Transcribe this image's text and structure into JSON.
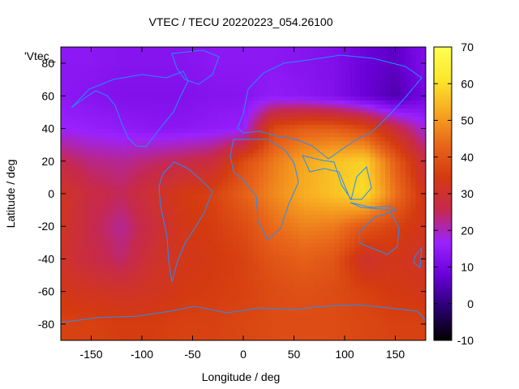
{
  "chart_data": {
    "type": "heatmap",
    "title": "VTEC / TECU 20220223_054.26100",
    "xlabel": "Longitude / deg",
    "ylabel": "Latitude / deg",
    "legend_entry": "'Vtec_",
    "xlim": [
      -180,
      180
    ],
    "ylim": [
      -90,
      90
    ],
    "x_ticks": [
      -150,
      -100,
      -50,
      0,
      50,
      100,
      150
    ],
    "y_ticks": [
      -80,
      -60,
      -40,
      -20,
      0,
      20,
      40,
      60,
      80
    ],
    "colorbar": {
      "range": [
        -10,
        70
      ],
      "ticks": [
        -10,
        0,
        10,
        20,
        30,
        40,
        50,
        60,
        70
      ],
      "palette": [
        "#000000",
        "#2a0070",
        "#6a00d8",
        "#9a22ff",
        "#c6294f",
        "#d43a10",
        "#e8661a",
        "#f7a821",
        "#fbe72a",
        "#ffff52"
      ]
    },
    "grid": false,
    "coastline_color": "#1f8fff",
    "field": {
      "lat_bands": [
        -80,
        -60,
        -40,
        -20,
        0,
        20,
        40,
        60,
        80
      ],
      "lon_columns": [
        -180,
        -150,
        -120,
        -90,
        -60,
        -30,
        0,
        30,
        60,
        90,
        120,
        150,
        180
      ],
      "vtec_tecu": [
        [
          36,
          36,
          35,
          35,
          36,
          36,
          37,
          38,
          38,
          38,
          37,
          36,
          36
        ],
        [
          33,
          32,
          31,
          32,
          34,
          35,
          36,
          38,
          39,
          38,
          36,
          34,
          33
        ],
        [
          31,
          27,
          24,
          30,
          33,
          34,
          36,
          40,
          42,
          40,
          30,
          33,
          31
        ],
        [
          32,
          26,
          22,
          28,
          33,
          35,
          38,
          44,
          47,
          46,
          40,
          36,
          32
        ],
        [
          32,
          27,
          25,
          30,
          34,
          36,
          42,
          48,
          53,
          56,
          60,
          45,
          32
        ],
        [
          26,
          23,
          22,
          24,
          26,
          28,
          38,
          46,
          52,
          56,
          58,
          42,
          27
        ],
        [
          17,
          16,
          15,
          14,
          14,
          15,
          16,
          38,
          42,
          42,
          38,
          28,
          18
        ],
        [
          14,
          13,
          12,
          12,
          12,
          13,
          13,
          15,
          14,
          12,
          8,
          4,
          10
        ],
        [
          14,
          14,
          13,
          13,
          13,
          14,
          14,
          14,
          13,
          12,
          8,
          6,
          12
        ]
      ]
    }
  }
}
